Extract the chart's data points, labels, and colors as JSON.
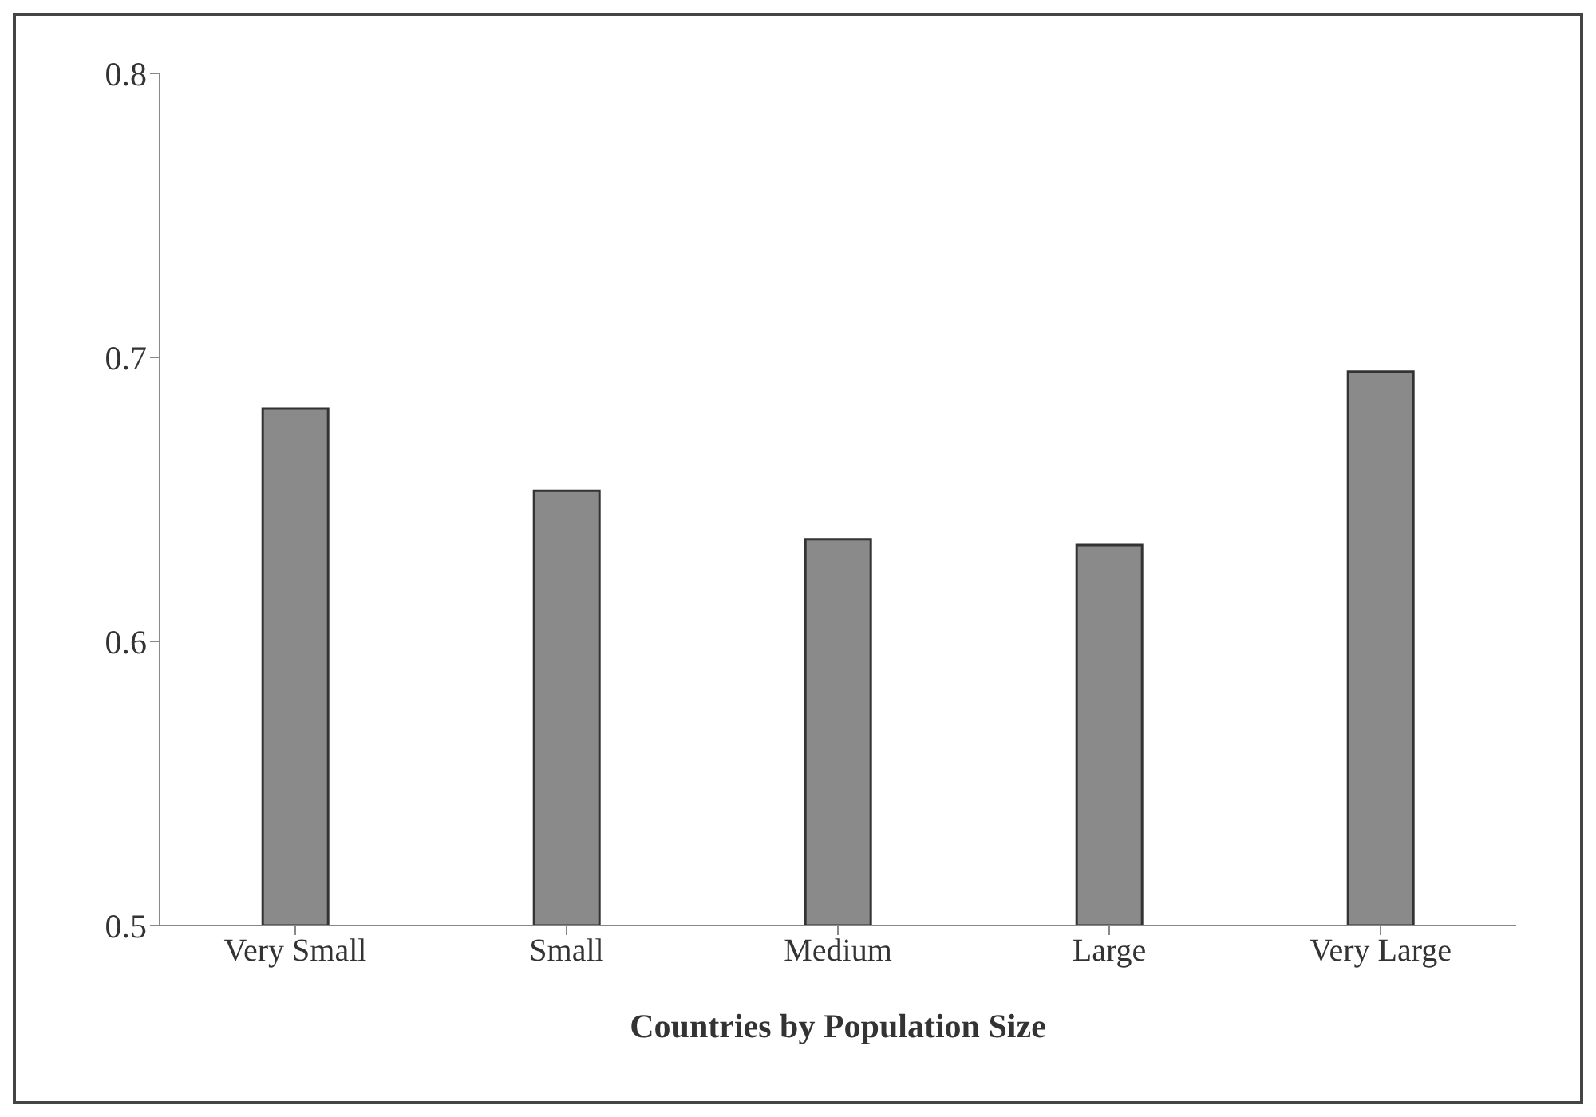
{
  "chart_data": {
    "type": "bar",
    "xlabel": "Countries by Population Size",
    "categories": [
      "Very Small",
      "Small",
      "Medium",
      "Large",
      "Very Large"
    ],
    "values": [
      0.682,
      0.653,
      0.636,
      0.634,
      0.695
    ],
    "color": "#8a8a8a",
    "ylim": [
      0.5,
      0.8
    ],
    "yticks": [
      0.5,
      0.6,
      0.7,
      0.8
    ],
    "grid": false,
    "legend": false
  }
}
